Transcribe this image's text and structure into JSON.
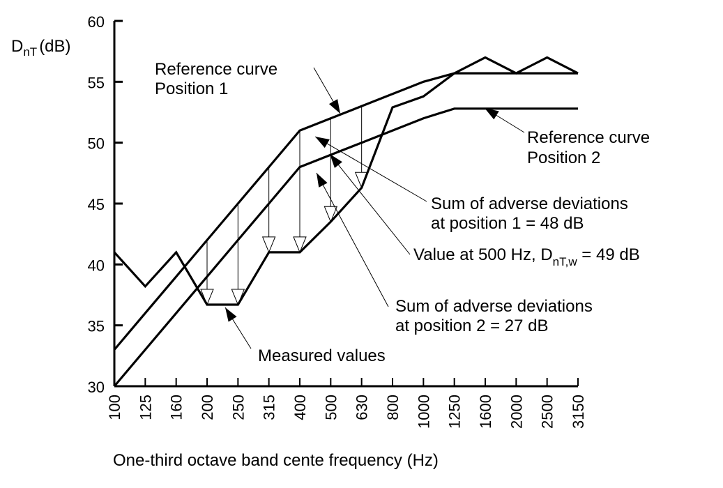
{
  "chart_data": {
    "type": "line",
    "title": "",
    "xlabel": "One-third octave band cente frequency (Hz)",
    "ylabel": "DnT (dB)",
    "ylabel_main": "D",
    "ylabel_sub": "nT",
    "ylabel_unit": "(dB)",
    "ylim": [
      30,
      60
    ],
    "yticks": [
      30,
      35,
      40,
      45,
      50,
      55,
      60
    ],
    "categories": [
      "100",
      "125",
      "160",
      "200",
      "250",
      "315",
      "400",
      "500",
      "630",
      "800",
      "1000",
      "1250",
      "1600",
      "2000",
      "2500",
      "3150"
    ],
    "series": [
      {
        "name": "Measured values",
        "values": [
          41,
          38.2,
          41,
          36.7,
          36.7,
          41,
          41,
          43.5,
          46.3,
          52.9,
          53.8,
          55.7,
          57,
          55.7,
          57,
          55.7
        ]
      },
      {
        "name": "Reference curve Position 1",
        "values": [
          33,
          36,
          39,
          42,
          45,
          48,
          51,
          52,
          53,
          54,
          55,
          56,
          56,
          56,
          56,
          56
        ]
      },
      {
        "name": "Reference curve Position 2",
        "values": [
          30,
          33,
          36,
          39,
          42,
          45,
          48,
          49,
          50,
          51,
          52,
          53,
          53,
          53,
          53,
          53
        ]
      }
    ],
    "annotations": {
      "ref1_line1": "Reference curve",
      "ref1_line2": "Position 1",
      "ref2_line1": "Reference curve",
      "ref2_line2": "Position 2",
      "sum1_line1": "Sum of adverse deviations",
      "sum1_line2": "at position 1 = 48 dB",
      "value_prefix": "Value at 500 Hz, D",
      "value_sub": "nT,w",
      "value_suffix": " = 49 dB",
      "sum2_line1": "Sum of adverse deviations",
      "sum2_line2": "at position 2 = 27 dB",
      "measured": "Measured values"
    },
    "grid": false,
    "legend": "none (inline annotations)"
  }
}
